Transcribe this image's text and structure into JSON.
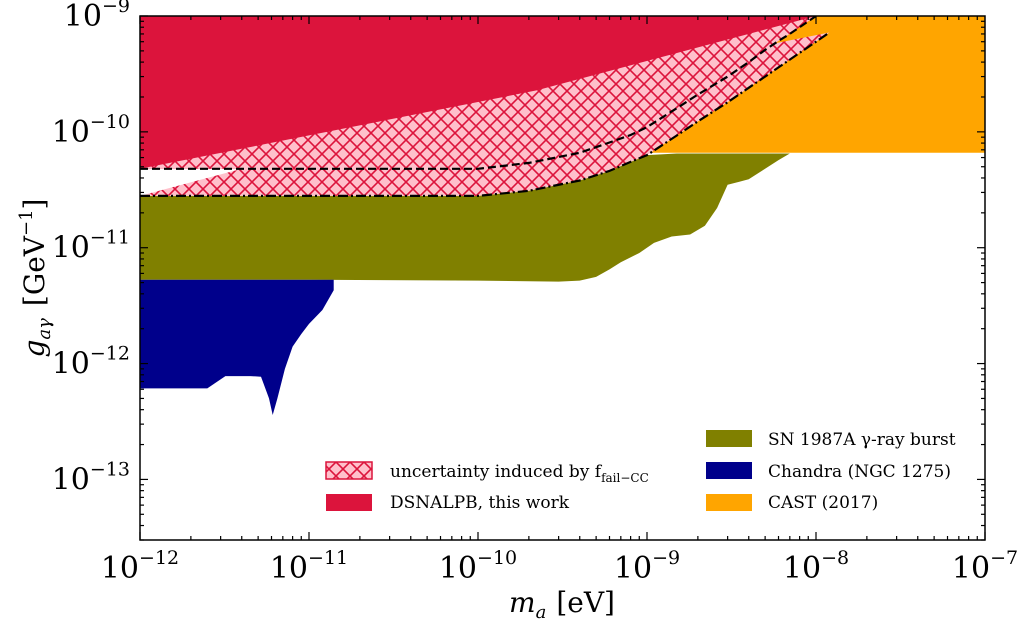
{
  "chart_data": {
    "type": "area",
    "title": "",
    "xlabel": {
      "symbol": "m",
      "sub": "a",
      "unit": "[eV]"
    },
    "ylabel": {
      "symbol": "g",
      "sub": "aγ",
      "unit_open": "[GeV",
      "unit_sup": "−1",
      "unit_close": "]"
    },
    "x_scale": "log",
    "y_scale": "log",
    "xlim": [
      1e-12,
      1e-07
    ],
    "ylim": [
      3e-14,
      1e-09
    ],
    "x_ticks": [
      {
        "value": 1e-12,
        "base": "10",
        "exp": "−12"
      },
      {
        "value": 1e-11,
        "base": "10",
        "exp": "−11"
      },
      {
        "value": 1e-10,
        "base": "10",
        "exp": "−10"
      },
      {
        "value": 1e-09,
        "base": "10",
        "exp": "−9"
      },
      {
        "value": 1e-08,
        "base": "10",
        "exp": "−8"
      },
      {
        "value": 1e-07,
        "base": "10",
        "exp": "−7"
      }
    ],
    "y_ticks": [
      {
        "value": 1e-13,
        "base": "10",
        "exp": "−13"
      },
      {
        "value": 1e-12,
        "base": "10",
        "exp": "−12"
      },
      {
        "value": 1e-11,
        "base": "10",
        "exp": "−11"
      },
      {
        "value": 1e-10,
        "base": "10",
        "exp": "−10"
      },
      {
        "value": 1e-09,
        "base": "10",
        "exp": "−9"
      }
    ],
    "grid": false,
    "series": [
      {
        "name": "CAST (2017)",
        "color": "#ffa500",
        "role": "exclusion-region",
        "lower_x": [
          1e-09,
          1e-07
        ],
        "lower_y": [
          6.6e-11,
          6.6e-11
        ],
        "upper_y": 1e-09
      },
      {
        "name": "SN 1987A γ-ray burst",
        "color": "#808000",
        "role": "exclusion-region",
        "upper_x": [
          1e-12,
          1e-10,
          2e-10,
          4e-10,
          6e-10,
          8e-10,
          1e-09,
          1.5e-09,
          2e-09,
          3e-09,
          4e-09,
          5e-09,
          6e-09,
          7e-09
        ],
        "upper_y": [
          2.8e-11,
          2.8e-11,
          3.1e-11,
          3.8e-11,
          4.6e-11,
          5.5e-11,
          6.3e-11,
          6.5e-11,
          6.5e-11,
          6.5e-11,
          6.5e-11,
          6.5e-11,
          6.5e-11,
          6.5e-11
        ],
        "lower_x": [
          7e-09,
          6e-09,
          5e-09,
          4e-09,
          3.5e-09,
          3e-09,
          2.6e-09,
          2.2e-09,
          1.8e-09,
          1.4e-09,
          1.1e-09,
          9e-10,
          7e-10,
          6e-10,
          5e-10,
          4e-10,
          3e-10,
          1e-10,
          1e-11,
          1e-12
        ],
        "lower_y": [
          6.5e-11,
          5.7e-11,
          4.8e-11,
          3.9e-11,
          3.7e-11,
          3.5e-11,
          2.2e-11,
          1.55e-11,
          1.3e-11,
          1.25e-11,
          1.1e-11,
          9e-12,
          7.5e-12,
          6.5e-12,
          5.6e-12,
          5.2e-12,
          5.1e-12,
          5.2e-12,
          5.3e-12,
          5.3e-12
        ]
      },
      {
        "name": "Chandra (NGC 1275)",
        "color": "#00008b",
        "role": "exclusion-region",
        "upper_x": [
          1e-12,
          1.4e-11
        ],
        "upper_y": [
          5.3e-12,
          5.3e-12
        ],
        "lower_x": [
          1.4e-11,
          1.4e-11,
          1.2e-11,
          1e-11,
          9e-12,
          8e-12,
          7.2e-12,
          6.5e-12,
          6.1e-12,
          5.8e-12,
          5.2e-12,
          4.5e-12,
          3.2e-12,
          2.5e-12,
          1e-12
        ],
        "lower_y": [
          5.3e-12,
          4.3e-12,
          2.9e-12,
          2.2e-12,
          1.8e-12,
          1.4e-12,
          9e-13,
          5e-13,
          3.6e-13,
          5e-13,
          7.7e-13,
          7.8e-13,
          7.8e-13,
          6.1e-13,
          6.1e-13
        ]
      },
      {
        "name": "DSNALPB, this work",
        "color": "#dc143c",
        "role": "exclusion-region",
        "lower_x": [
          1e-12,
          1e-10,
          2e-10,
          4e-10,
          6e-10,
          8e-10,
          1e-09,
          1.5e-09,
          2e-09,
          3e-09,
          4e-09,
          5e-09,
          6e-09,
          7e-09,
          8e-09,
          9e-09,
          1e-08
        ],
        "lower_y": [
          4.8e-11,
          4.8e-11,
          5.4e-11,
          6.6e-11,
          8.1e-11,
          9.4e-11,
          1.1e-10,
          1.6e-10,
          2.1e-10,
          3e-10,
          4e-10,
          5.1e-10,
          6.1e-10,
          7e-10,
          8e-10,
          9e-10,
          1e-09
        ],
        "upper_y": 1e-09
      },
      {
        "name": "uncertainty induced by f",
        "name_sub": "fail−CC",
        "color": "#dc143c",
        "fill": "#ffc0cb",
        "role": "uncertainty-band",
        "upper_x": [
          1e-12,
          1e-10,
          2e-10,
          4e-10,
          6e-10,
          8e-10,
          1e-09,
          1.5e-09,
          2e-09,
          3e-09,
          4e-09,
          5e-09,
          6e-09,
          7e-09,
          8e-09,
          9e-09,
          1e-08
        ],
        "upper_y": [
          4.8e-11,
          4.8e-11,
          5.4e-11,
          6.6e-11,
          8.1e-11,
          9.4e-11,
          1.1e-10,
          1.6e-10,
          2.1e-10,
          3e-10,
          4e-10,
          5.1e-10,
          6.1e-10,
          7e-10,
          8e-10,
          9e-10,
          1e-09
        ],
        "lower_x": [
          1e-12,
          1e-10,
          2e-10,
          4e-10,
          6e-10,
          8e-10,
          1e-09,
          1.5e-09,
          2e-09,
          3e-09,
          4e-09,
          5e-09,
          6e-09,
          7e-09,
          8e-09,
          9e-09,
          1e-08,
          1.2e-08
        ],
        "lower_y": [
          2.8e-11,
          2.8e-11,
          3.1e-11,
          3.8e-11,
          4.6e-11,
          5.5e-11,
          6.3e-11,
          9.3e-11,
          1.23e-10,
          1.8e-10,
          2.4e-10,
          3e-10,
          3.6e-10,
          4.2e-10,
          4.8e-10,
          5.4e-10,
          6e-10,
          7.2e-10
        ]
      }
    ],
    "legend": {
      "left": {
        "placement": "lower-center",
        "entries": [
          {
            "text": "uncertainty induced by f",
            "sub": "fail−CC",
            "style": "hatch"
          },
          {
            "text": "DSNALPB, this work",
            "style": "solid",
            "color": "#dc143c"
          }
        ]
      },
      "right": {
        "placement": "lower-right",
        "entries": [
          {
            "text": "SN 1987A γ-ray burst",
            "style": "solid",
            "color": "#808000"
          },
          {
            "text": "Chandra (NGC 1275)",
            "style": "solid",
            "color": "#00008b"
          },
          {
            "text": "CAST (2017)",
            "style": "solid",
            "color": "#ffa500"
          }
        ]
      }
    }
  }
}
